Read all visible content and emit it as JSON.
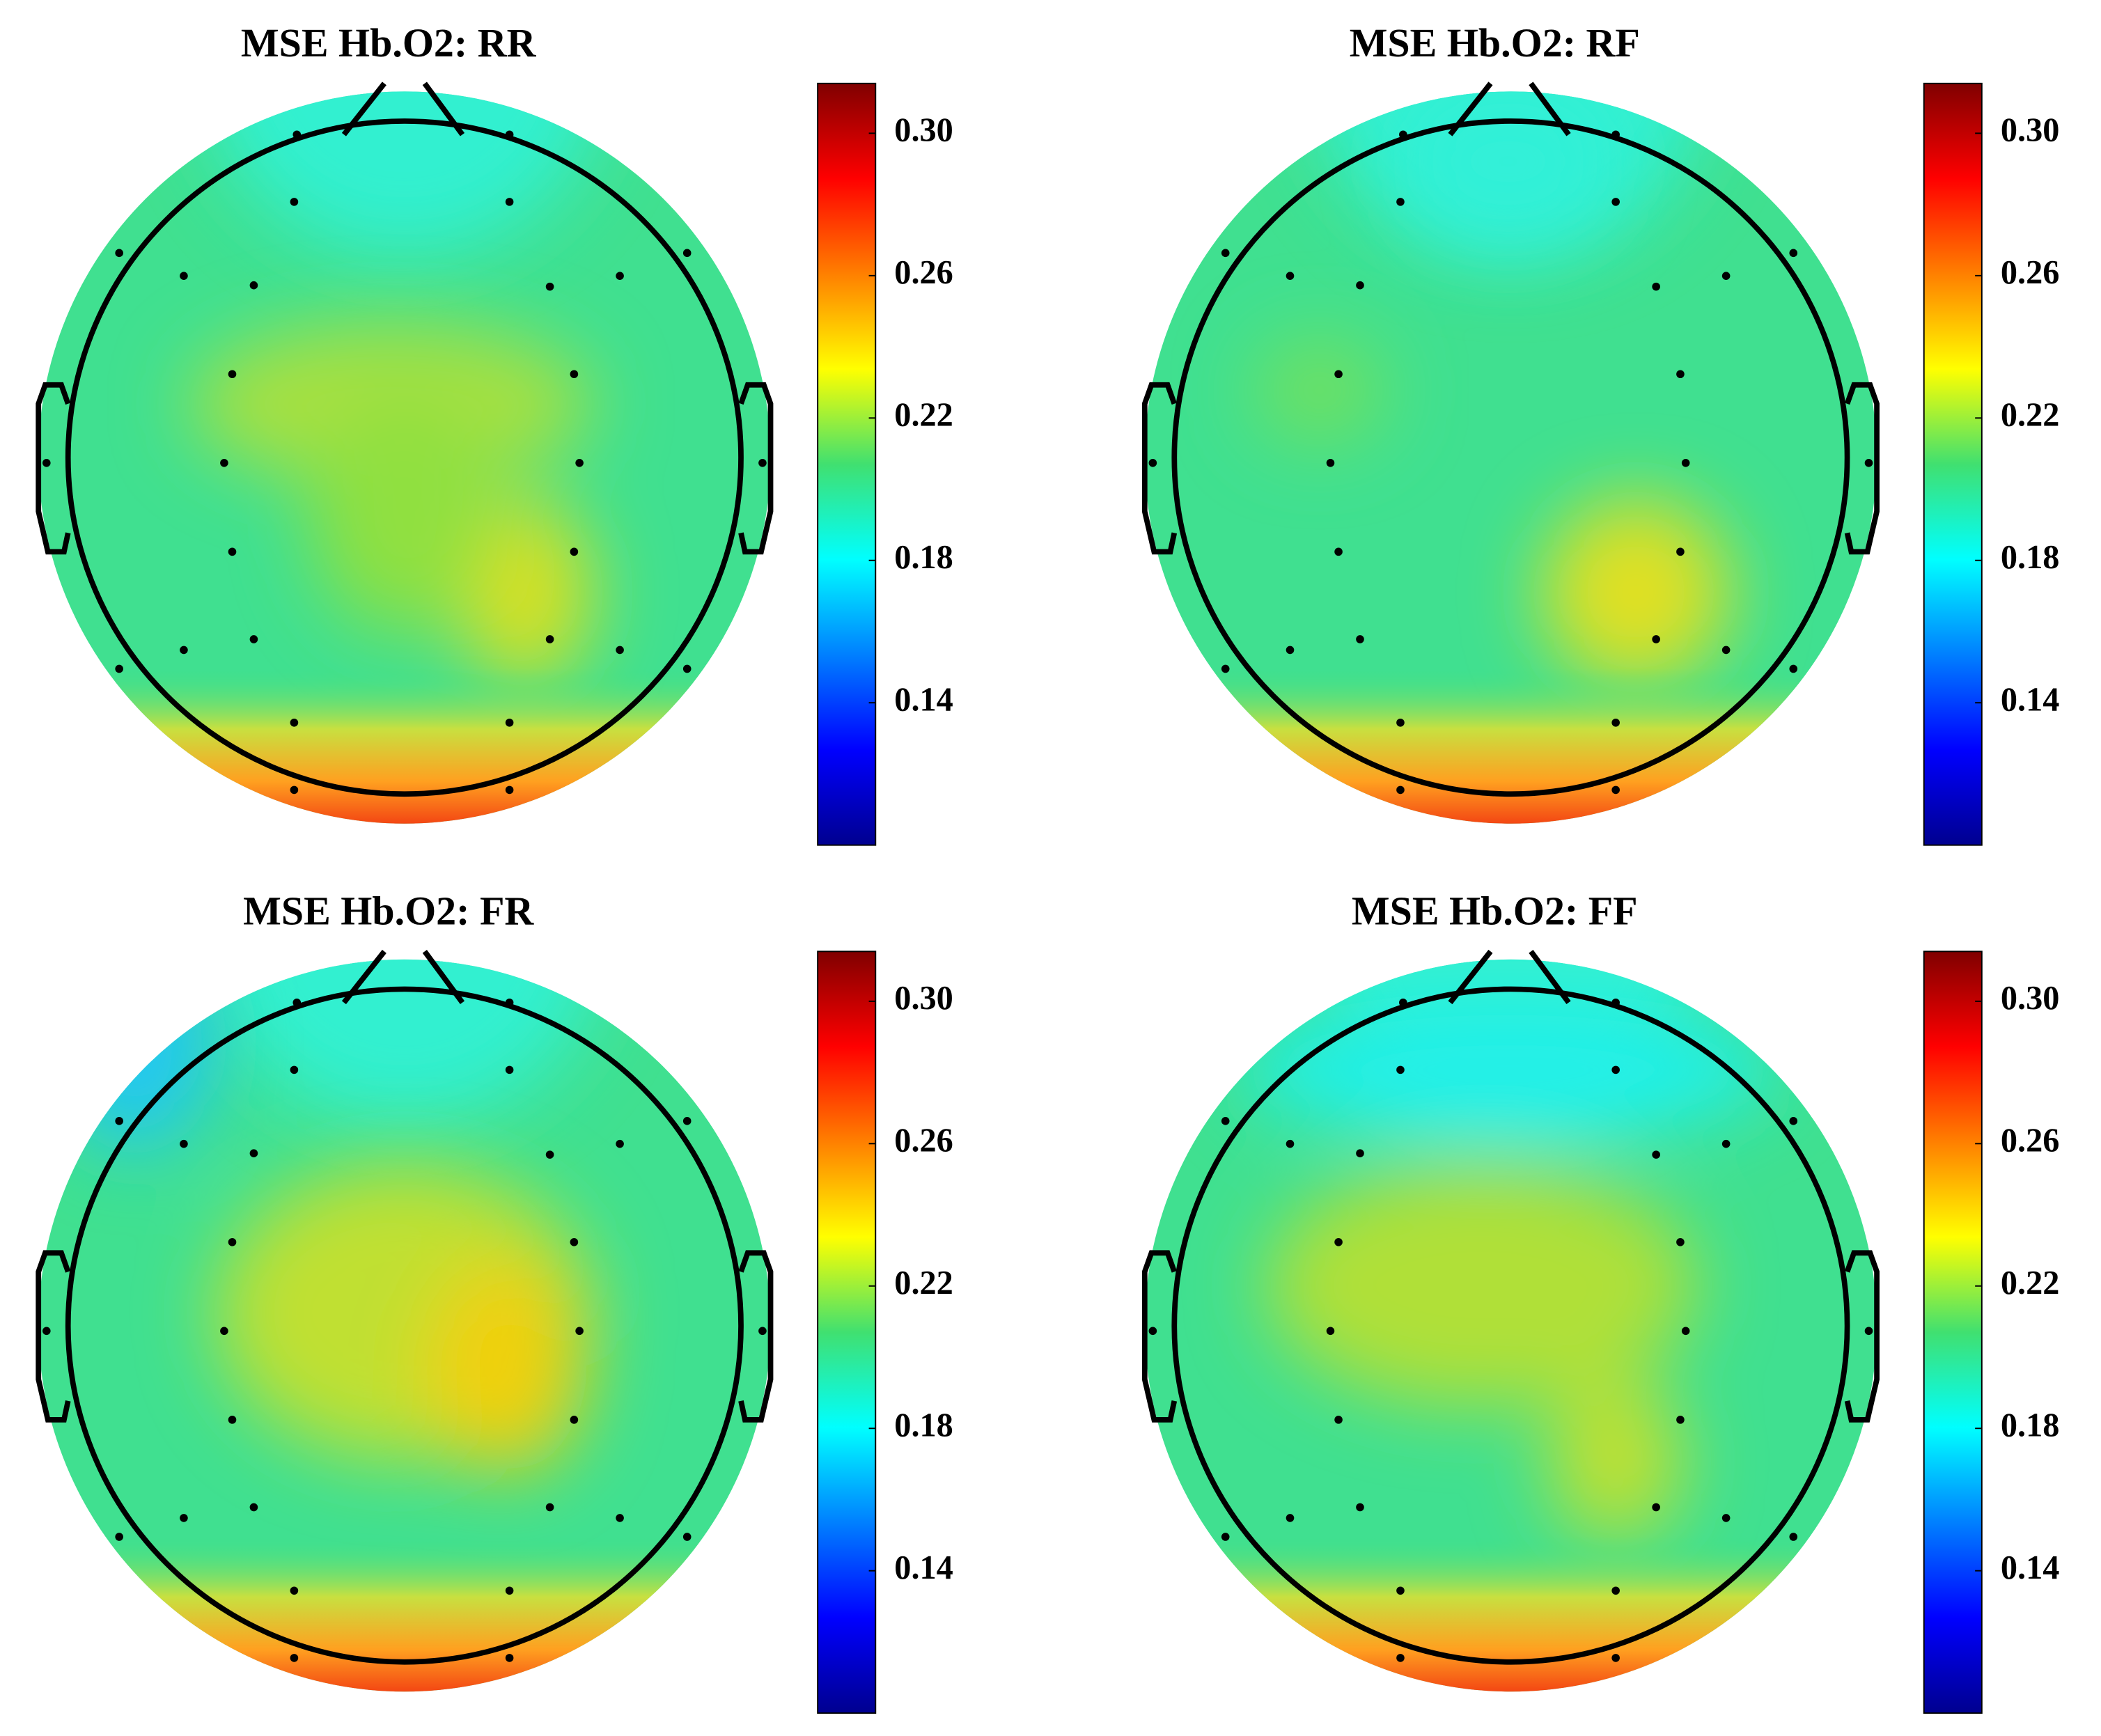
{
  "chart_data": [
    {
      "type": "topoplot",
      "title": "MSE Hb.O2: RR",
      "clim": [
        0.1,
        0.314
      ],
      "cticks": [
        0.14,
        0.18,
        0.22,
        0.26,
        {
          "value": 0.3,
          "label": "0.30"
        }
      ]
    },
    {
      "type": "topoplot",
      "title": "MSE Hb.O2: RF",
      "clim": [
        0.1,
        0.314
      ],
      "cticks": [
        0.14,
        0.18,
        0.22,
        0.26,
        {
          "value": 0.3,
          "label": "0.30"
        }
      ]
    },
    {
      "type": "topoplot",
      "title": "MSE Hb.O2: FR",
      "clim": [
        0.1,
        0.314
      ],
      "cticks": [
        0.14,
        0.18,
        0.22,
        0.26,
        {
          "value": 0.3,
          "label": "0.30"
        }
      ]
    },
    {
      "type": "topoplot",
      "title": "MSE Hb.O2: FF",
      "clim": [
        0.1,
        0.314
      ],
      "cticks": [
        0.14,
        0.18,
        0.22,
        0.26,
        {
          "value": 0.3,
          "label": "0.30"
        }
      ]
    }
  ]
}
